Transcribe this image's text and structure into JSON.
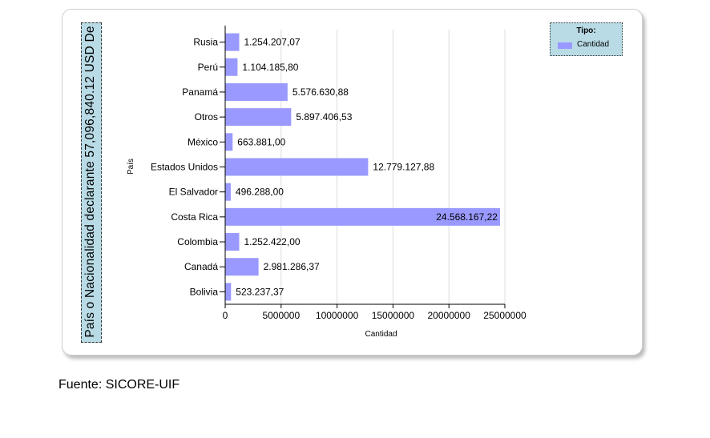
{
  "chart_data": {
    "type": "bar",
    "orientation": "horizontal",
    "title": "País o Nacionalidad declarante 57,096,840.12 USD De",
    "xlabel": "Cantidad",
    "ylabel": "País",
    "xlim": [
      0,
      25000000
    ],
    "xticks": [
      "0",
      "5000000",
      "10000000",
      "15000000",
      "20000000",
      "25000000"
    ],
    "grid": true,
    "legend": {
      "title": "Tipo:",
      "placement": "top-right"
    },
    "series": [
      {
        "name": "Cantidad",
        "color": "#9999ff",
        "categories": [
          "Rusia",
          "Perú",
          "Panamá",
          "Otros",
          "México",
          "Estados Unidos",
          "El Salvador",
          "Costa Rica",
          "Colombia",
          "Canadá",
          "Bolivia"
        ],
        "values": [
          1254207.07,
          1104185.8,
          5576630.88,
          5897406.53,
          663881.0,
          12779127.88,
          496288.0,
          24568167.22,
          1252422.0,
          2981286.37,
          523237.37
        ],
        "labels": [
          "1.254.207,07",
          "1.104.185,80",
          "5.576.630,88",
          "5.897.406,53",
          "663.881,00",
          "12.779.127,88",
          "496.288,00",
          "24.568.167,22",
          "1.252.422,00",
          "2.981.286,37",
          "523.237,37"
        ]
      }
    ]
  },
  "source": "Fuente: SICORE-UIF"
}
